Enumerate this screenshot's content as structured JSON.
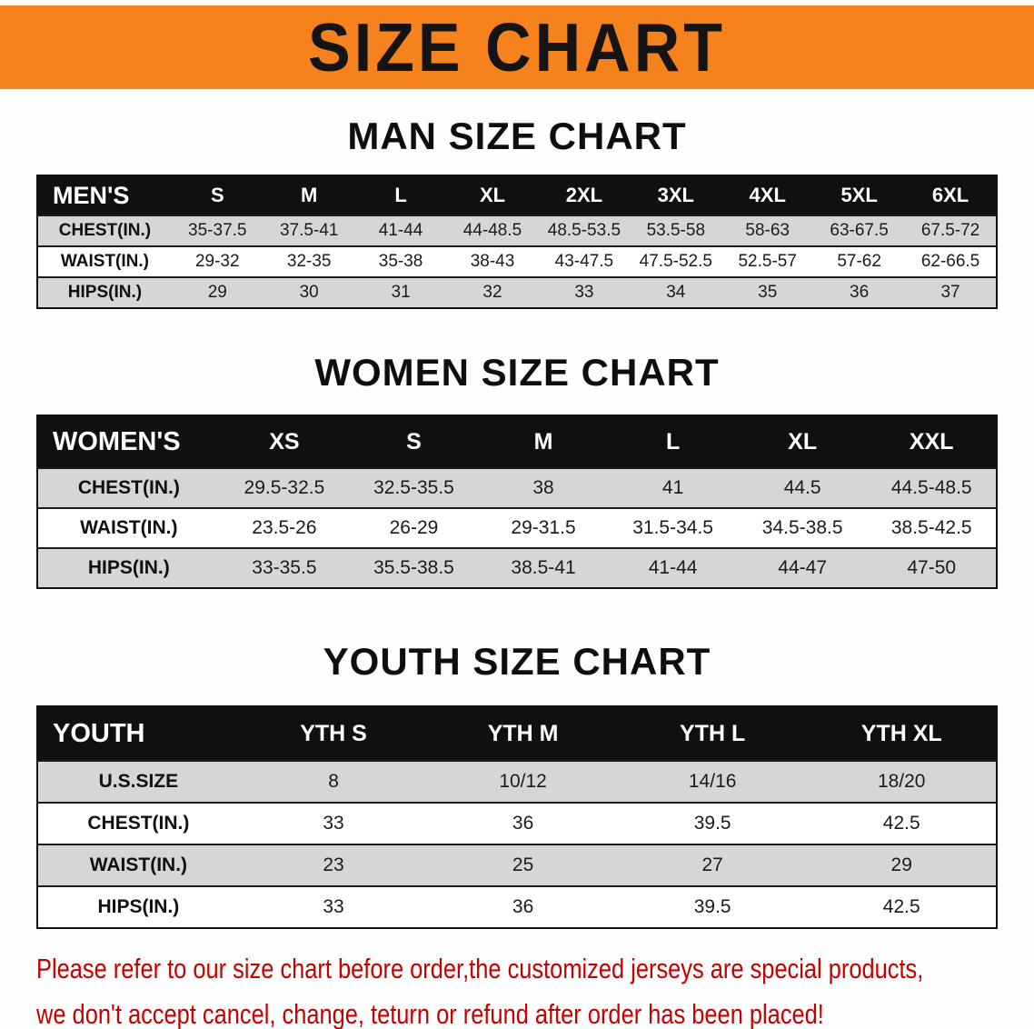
{
  "banner": {
    "title": "SIZE CHART"
  },
  "colors": {
    "banner-bg": "#f6821d",
    "table-header-bg": "#101010",
    "table-header-text": "#ffffff",
    "row-shade": "#d6d6d6",
    "disclaimer-text": "#c40000"
  },
  "sections": [
    {
      "heading": "MAN SIZE CHART",
      "table": {
        "header": [
          "MEN'S",
          "S",
          "M",
          "L",
          "XL",
          "2XL",
          "3XL",
          "4XL",
          "5XL",
          "6XL"
        ],
        "rows": [
          [
            "CHEST(IN.)",
            "35-37.5",
            "37.5-41",
            "41-44",
            "44-48.5",
            "48.5-53.5",
            "53.5-58",
            "58-63",
            "63-67.5",
            "67.5-72"
          ],
          [
            "WAIST(IN.)",
            "29-32",
            "32-35",
            "35-38",
            "38-43",
            "43-47.5",
            "47.5-52.5",
            "52.5-57",
            "57-62",
            "62-66.5"
          ],
          [
            "HIPS(IN.)",
            "29",
            "30",
            "31",
            "32",
            "33",
            "34",
            "35",
            "36",
            "37"
          ]
        ]
      }
    },
    {
      "heading": "WOMEN SIZE CHART",
      "table": {
        "header": [
          "WOMEN'S",
          "XS",
          "S",
          "M",
          "L",
          "XL",
          "XXL"
        ],
        "rows": [
          [
            "CHEST(IN.)",
            "29.5-32.5",
            "32.5-35.5",
            "38",
            "41",
            "44.5",
            "44.5-48.5"
          ],
          [
            "WAIST(IN.)",
            "23.5-26",
            "26-29",
            "29-31.5",
            "31.5-34.5",
            "34.5-38.5",
            "38.5-42.5"
          ],
          [
            "HIPS(IN.)",
            "33-35.5",
            "35.5-38.5",
            "38.5-41",
            "41-44",
            "44-47",
            "47-50"
          ]
        ]
      }
    },
    {
      "heading": "YOUTH SIZE CHART",
      "table": {
        "header": [
          "YOUTH",
          "YTH S",
          "YTH M",
          "YTH L",
          "YTH XL"
        ],
        "rows": [
          [
            "U.S.SIZE",
            "8",
            "10/12",
            "14/16",
            "18/20"
          ],
          [
            "CHEST(IN.)",
            "33",
            "36",
            "39.5",
            "42.5"
          ],
          [
            "WAIST(IN.)",
            "23",
            "25",
            "27",
            "29"
          ],
          [
            "HIPS(IN.)",
            "33",
            "36",
            "39.5",
            "42.5"
          ]
        ]
      }
    }
  ],
  "disclaimer": {
    "line1": "Please refer to our size chart before order,the customized jerseys are special products,",
    "line2": "we don't accept cancel, change, teturn or refund after order has been placed!"
  }
}
